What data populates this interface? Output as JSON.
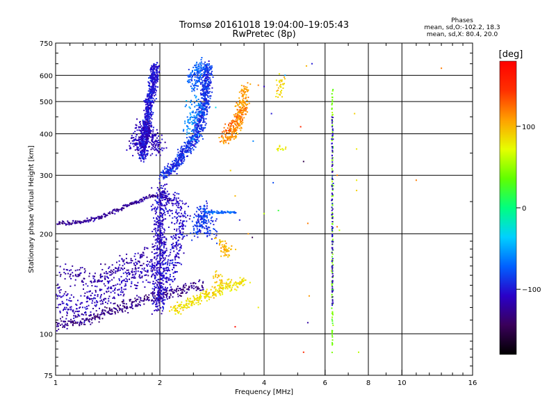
{
  "title": "Tromsø 20161018 19:04:00–19:05:43",
  "subtitle": "RwPretec (8p)",
  "stats": {
    "heading": "Phases",
    "line1": "mean, sd,O:-102.2, 18.3",
    "line2": "mean, sd,X:  80.4, 20.0"
  },
  "chart_data": {
    "type": "scatter",
    "title": "Tromsø 20161018 19:04:00–19:05:43",
    "subtitle": "RwPretec (8p)",
    "xlabel": "Frequency [MHz]",
    "ylabel": "Stationary phase Virtual Height [km]",
    "x_scale": "log",
    "y_scale": "log",
    "xlim": [
      1,
      16
    ],
    "ylim": [
      75,
      750
    ],
    "x_ticks": [
      1,
      2,
      4,
      6,
      8,
      10,
      16
    ],
    "x_tick_labels": [
      "1",
      "2",
      "4",
      "6",
      "8",
      "10",
      "16"
    ],
    "y_ticks": [
      75,
      100,
      200,
      300,
      400,
      500,
      600,
      750
    ],
    "y_tick_labels": [
      "75",
      "100",
      "200",
      "300",
      "400",
      "500",
      "600",
      "750"
    ],
    "grid": true,
    "colorbar": {
      "label": "[deg]",
      "range": [
        -180,
        180
      ],
      "ticks": [
        100,
        0,
        -100
      ],
      "tick_labels": [
        "100",
        "0",
        "−100"
      ],
      "colors": [
        "#000000",
        "#3a005a",
        "#2a00c8",
        "#0060ff",
        "#00d0ff",
        "#00ff80",
        "#60ff00",
        "#e6ff00",
        "#ffa000",
        "#ff3000",
        "#ff0000"
      ]
    },
    "traces": [
      {
        "points": [
          [
            1.0,
            108
          ],
          [
            1.03,
            107
          ],
          [
            1.07,
            108
          ],
          [
            1.12,
            109
          ],
          [
            1.18,
            110
          ],
          [
            1.25,
            111
          ],
          [
            1.33,
            113
          ],
          [
            1.4,
            115
          ],
          [
            1.5,
            118
          ],
          [
            1.6,
            121
          ],
          [
            1.7,
            124
          ],
          [
            1.8,
            127
          ],
          [
            1.9,
            129
          ],
          [
            2.0,
            131
          ],
          [
            2.1,
            132
          ],
          [
            2.25,
            134
          ],
          [
            2.4,
            136
          ],
          [
            2.55,
            138
          ],
          [
            2.7,
            140
          ]
        ],
        "phase": -130,
        "spread": 0.035,
        "jx": 0.02,
        "n": 5
      },
      {
        "points": [
          [
            1.0,
            130
          ],
          [
            1.05,
            125
          ],
          [
            1.1,
            121
          ],
          [
            1.2,
            122
          ],
          [
            1.3,
            128
          ],
          [
            1.4,
            133
          ],
          [
            1.5,
            138
          ],
          [
            1.6,
            145
          ],
          [
            1.7,
            150
          ],
          [
            1.8,
            155
          ],
          [
            1.9,
            160
          ],
          [
            1.95,
            165
          ]
        ],
        "phase": -112,
        "spread": 0.09,
        "jx": 0.03,
        "n": 6
      },
      {
        "points": [
          [
            1.05,
            155
          ],
          [
            1.15,
            150
          ],
          [
            1.25,
            145
          ],
          [
            1.35,
            150
          ],
          [
            1.45,
            155
          ],
          [
            1.55,
            160
          ],
          [
            1.7,
            165
          ],
          [
            1.85,
            175
          ]
        ],
        "phase": -120,
        "spread": 0.06,
        "jx": 0.04,
        "n": 4
      },
      {
        "points": [
          [
            1.0,
            215
          ],
          [
            1.1,
            216
          ],
          [
            1.2,
            218
          ],
          [
            1.3,
            222
          ],
          [
            1.4,
            228
          ],
          [
            1.5,
            235
          ],
          [
            1.6,
            242
          ],
          [
            1.7,
            248
          ],
          [
            1.8,
            255
          ],
          [
            1.9,
            260
          ],
          [
            2.0,
            262
          ],
          [
            2.1,
            255
          ],
          [
            2.2,
            248
          ]
        ],
        "phase": -125,
        "spread": 0.012,
        "jx": 0.01,
        "n": 4
      },
      {
        "points": [
          [
            2.0,
            120
          ],
          [
            2.0,
            140
          ],
          [
            2.0,
            160
          ],
          [
            2.0,
            180
          ],
          [
            2.0,
            200
          ],
          [
            2.0,
            220
          ],
          [
            2.0,
            240
          ],
          [
            2.05,
            260
          ],
          [
            2.0,
            280
          ]
        ],
        "phase": -108,
        "spread": 0.04,
        "jx": 0.04,
        "n": 9
      },
      {
        "points": [
          [
            2.1,
            140
          ],
          [
            2.15,
            160
          ],
          [
            2.2,
            180
          ],
          [
            2.25,
            200
          ],
          [
            2.3,
            230
          ],
          [
            2.2,
            260
          ]
        ],
        "phase": -105,
        "spread": 0.05,
        "jx": 0.05,
        "n": 6
      },
      {
        "points": [
          [
            1.78,
            340
          ],
          [
            1.8,
            380
          ],
          [
            1.82,
            420
          ],
          [
            1.85,
            460
          ],
          [
            1.87,
            500
          ],
          [
            1.9,
            540
          ],
          [
            1.92,
            580
          ],
          [
            1.93,
            620
          ],
          [
            1.95,
            650
          ]
        ],
        "phase": -100,
        "spread": 0.03,
        "jx": 0.025,
        "n": 16
      },
      {
        "points": [
          [
            1.7,
            360
          ],
          [
            1.75,
            390
          ],
          [
            1.8,
            420
          ],
          [
            1.88,
            400
          ],
          [
            1.95,
            370
          ],
          [
            2.0,
            350
          ]
        ],
        "phase": -112,
        "spread": 0.05,
        "jx": 0.05,
        "n": 10
      },
      {
        "points": [
          [
            2.05,
            300
          ],
          [
            2.2,
            320
          ],
          [
            2.35,
            350
          ],
          [
            2.5,
            380
          ],
          [
            2.6,
            420
          ],
          [
            2.65,
            460
          ],
          [
            2.7,
            500
          ],
          [
            2.72,
            540
          ],
          [
            2.73,
            580
          ],
          [
            2.74,
            620
          ],
          [
            2.75,
            650
          ]
        ],
        "phase": -90,
        "spread": 0.025,
        "jx": 0.03,
        "n": 14
      },
      {
        "points": [
          [
            2.55,
            580
          ],
          [
            2.6,
            620
          ],
          [
            2.65,
            650
          ],
          [
            2.5,
            600
          ],
          [
            2.55,
            540
          ]
        ],
        "phase": -75,
        "spread": 0.04,
        "jx": 0.04,
        "n": 6
      },
      {
        "points": [
          [
            2.4,
            420
          ],
          [
            2.5,
            460
          ],
          [
            2.55,
            500
          ],
          [
            2.45,
            380
          ]
        ],
        "phase": -60,
        "spread": 0.05,
        "jx": 0.05,
        "n": 3
      },
      {
        "points": [
          [
            2.55,
            200
          ],
          [
            2.6,
            215
          ],
          [
            2.65,
            230
          ],
          [
            2.7,
            240
          ],
          [
            2.75,
            210
          ],
          [
            2.8,
            195
          ]
        ],
        "phase": -88,
        "spread": 0.04,
        "jx": 0.04,
        "n": 7
      },
      {
        "points": [
          [
            2.75,
            232
          ],
          [
            2.9,
            232
          ],
          [
            3.05,
            232
          ],
          [
            3.2,
            232
          ],
          [
            3.35,
            232
          ]
        ],
        "phase": -70,
        "spread": 0.008,
        "jx": 0.01,
        "n": 4
      },
      {
        "points": [
          [
            2.2,
            118
          ],
          [
            2.4,
            123
          ],
          [
            2.6,
            128
          ],
          [
            2.8,
            132
          ],
          [
            3.0,
            136
          ],
          [
            3.2,
            140
          ],
          [
            3.4,
            143
          ],
          [
            3.55,
            145
          ]
        ],
        "phase": 85,
        "spread": 0.03,
        "jx": 0.03,
        "n": 7
      },
      {
        "points": [
          [
            2.9,
            150
          ],
          [
            3.0,
            145
          ],
          [
            3.1,
            140
          ]
        ],
        "phase": 95,
        "spread": 0.04,
        "jx": 0.03,
        "n": 5
      },
      {
        "points": [
          [
            2.95,
            190
          ],
          [
            3.05,
            185
          ],
          [
            3.1,
            180
          ],
          [
            3.2,
            178
          ],
          [
            3.0,
            175
          ]
        ],
        "phase": 100,
        "spread": 0.03,
        "jx": 0.03,
        "n": 5
      },
      {
        "points": [
          [
            3.05,
            380
          ],
          [
            3.2,
            390
          ],
          [
            3.3,
            410
          ],
          [
            3.4,
            440
          ],
          [
            3.45,
            470
          ],
          [
            3.5,
            510
          ],
          [
            3.52,
            560
          ]
        ],
        "phase": 110,
        "spread": 0.03,
        "jx": 0.03,
        "n": 8
      },
      {
        "points": [
          [
            3.1,
            400
          ],
          [
            3.25,
            430
          ],
          [
            3.4,
            460
          ],
          [
            3.5,
            480
          ]
        ],
        "phase": 125,
        "spread": 0.03,
        "jx": 0.03,
        "n": 5
      },
      {
        "points": [
          [
            4.4,
            520
          ],
          [
            4.45,
            550
          ],
          [
            4.5,
            580
          ],
          [
            4.4,
            600
          ]
        ],
        "phase": 90,
        "spread": 0.03,
        "jx": 0.02,
        "n": 3
      },
      {
        "points": [
          [
            4.4,
            360
          ],
          [
            4.5,
            362
          ],
          [
            4.6,
            358
          ]
        ],
        "phase": 80,
        "spread": 0.02,
        "jx": 0.02,
        "n": 3
      },
      {
        "points": [
          [
            6.3,
            90
          ],
          [
            6.3,
            110
          ],
          [
            6.3,
            140
          ],
          [
            6.3,
            170
          ],
          [
            6.3,
            200
          ],
          [
            6.3,
            230
          ],
          [
            6.3,
            260
          ],
          [
            6.3,
            290
          ],
          [
            6.3,
            310
          ],
          [
            6.3,
            330
          ],
          [
            6.3,
            360
          ],
          [
            6.3,
            400
          ],
          [
            6.3,
            450
          ],
          [
            6.3,
            500
          ],
          [
            6.3,
            550
          ]
        ],
        "phase": 40,
        "spread": 0.02,
        "jx": 0.004,
        "n": 1
      },
      {
        "points": [
          [
            6.3,
            120
          ],
          [
            6.3,
            185
          ],
          [
            6.3,
            240
          ],
          [
            6.3,
            300
          ],
          [
            6.3,
            460
          ]
        ],
        "phase": -110,
        "spread": 0.02,
        "jx": 0.004,
        "n": 1
      }
    ],
    "scattered_points": [
      [
        3.72,
        380,
        -60
      ],
      [
        3.85,
        560,
        120
      ],
      [
        4.0,
        555,
        -110
      ],
      [
        4.25,
        285,
        -80
      ],
      [
        4.4,
        235,
        20
      ],
      [
        4.2,
        460,
        -100
      ],
      [
        4.6,
        600,
        -50
      ],
      [
        5.1,
        420,
        150
      ],
      [
        5.2,
        330,
        -150
      ],
      [
        5.3,
        640,
        100
      ],
      [
        5.35,
        215,
        120
      ],
      [
        5.5,
        650,
        -100
      ],
      [
        5.35,
        108,
        -120
      ],
      [
        5.4,
        130,
        110
      ],
      [
        6.5,
        300,
        120
      ],
      [
        6.5,
        210,
        120
      ],
      [
        6.6,
        205,
        60
      ],
      [
        7.3,
        460,
        90
      ],
      [
        7.4,
        360,
        80
      ],
      [
        7.4,
        290,
        80
      ],
      [
        7.4,
        270,
        90
      ],
      [
        7.5,
        88,
        60
      ],
      [
        5.2,
        88,
        150
      ],
      [
        11.0,
        290,
        120
      ],
      [
        13.0,
        630,
        120
      ],
      [
        3.3,
        105,
        170
      ],
      [
        3.7,
        195,
        -150
      ],
      [
        3.6,
        200,
        110
      ],
      [
        3.3,
        260,
        100
      ],
      [
        3.2,
        310,
        90
      ],
      [
        4.0,
        230,
        60
      ],
      [
        3.85,
        120,
        80
      ],
      [
        3.4,
        220,
        -100
      ],
      [
        2.7,
        520,
        -90
      ],
      [
        2.9,
        480,
        -30
      ]
    ]
  }
}
